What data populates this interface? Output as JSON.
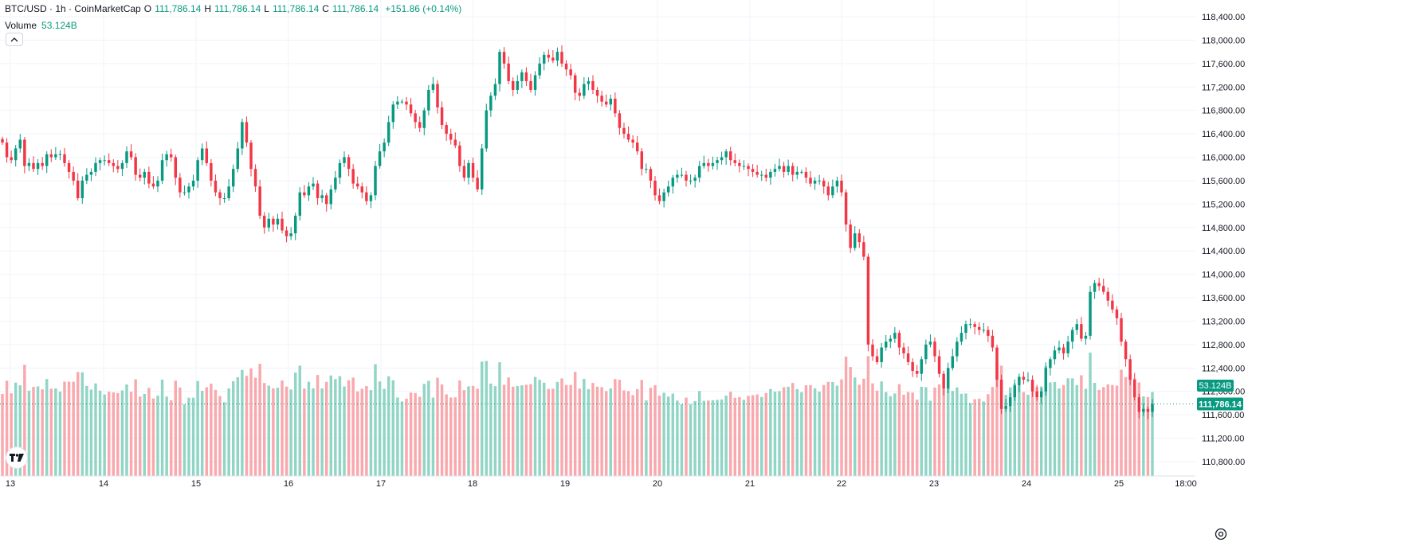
{
  "legend": {
    "symbol": "BTC/USD · 1h · CoinMarketCap",
    "open_label": "O",
    "open": "111,786.14",
    "high_label": "H",
    "high": "111,786.14",
    "low_label": "L",
    "low": "111,786.14",
    "close_label": "C",
    "close": "111,786.14",
    "change": "+151.86 (+0.14%)",
    "volume_label": "Volume",
    "volume_value": "53.124B"
  },
  "icons": {
    "collapse": "chevron-up-icon",
    "logo": "tradingview-logo",
    "settings": "gear-icon"
  },
  "colors": {
    "up": "#089981",
    "down": "#f23645",
    "vol_up": "#91d5c5",
    "vol_down": "#f9a8ad",
    "grid": "#f0f3fa",
    "text": "#131722"
  },
  "chart_data": {
    "type": "candlestick",
    "interval": "1h",
    "price_ticks": [
      "118,400.00",
      "118,000.00",
      "117,600.00",
      "117,200.00",
      "116,800.00",
      "116,400.00",
      "116,000.00",
      "115,600.00",
      "115,200.00",
      "114,800.00",
      "114,400.00",
      "114,000.00",
      "113,600.00",
      "113,200.00",
      "112,800.00",
      "112,400.00",
      "112,000.00",
      "111,600.00",
      "111,200.00",
      "110,800.00"
    ],
    "price_tick_values": [
      118400,
      118000,
      117600,
      117200,
      116800,
      116400,
      116000,
      115600,
      115200,
      114800,
      114400,
      114000,
      113600,
      113200,
      112800,
      112400,
      112000,
      111600,
      111200,
      110800
    ],
    "date_labels": [
      "13",
      "14",
      "15",
      "16",
      "17",
      "18",
      "19",
      "20",
      "21",
      "22",
      "23",
      "24",
      "25",
      "18:00"
    ],
    "current_price": "111,786.14",
    "current_price_value": 111786.14,
    "volume_label": "53.124B",
    "closes": [
      116250,
      116000,
      115950,
      116150,
      116300,
      115850,
      115900,
      115800,
      115900,
      115850,
      116050,
      116000,
      116050,
      116050,
      115900,
      115750,
      115600,
      115300,
      115600,
      115700,
      115750,
      115900,
      115950,
      115950,
      115900,
      115850,
      115800,
      115900,
      116100,
      116000,
      115700,
      115650,
      115750,
      115550,
      115500,
      115600,
      115950,
      116050,
      116000,
      115650,
      115400,
      115400,
      115500,
      115600,
      115950,
      116150,
      115900,
      115600,
      115400,
      115300,
      115300,
      115500,
      115800,
      116150,
      116600,
      116250,
      115800,
      115500,
      115000,
      114800,
      114950,
      114850,
      114950,
      114750,
      114650,
      114700,
      115000,
      115400,
      115350,
      115500,
      115550,
      115300,
      115350,
      115200,
      115450,
      115650,
      115900,
      116000,
      115800,
      115550,
      115500,
      115400,
      115250,
      115350,
      115850,
      116100,
      116250,
      116600,
      116900,
      116950,
      116950,
      116900,
      116750,
      116600,
      116500,
      116800,
      117150,
      117250,
      116850,
      116550,
      116400,
      116300,
      116200,
      115850,
      115650,
      115900,
      115650,
      115450,
      116150,
      116800,
      117050,
      117250,
      117800,
      117600,
      117300,
      117150,
      117300,
      117450,
      117300,
      117150,
      117400,
      117600,
      117750,
      117700,
      117650,
      117800,
      117600,
      117500,
      117400,
      117100,
      117050,
      117250,
      117300,
      117150,
      117050,
      116950,
      116900,
      117000,
      116750,
      116500,
      116400,
      116300,
      116250,
      116100,
      115800,
      115800,
      115600,
      115350,
      115250,
      115400,
      115500,
      115650,
      115700,
      115700,
      115600,
      115600,
      115650,
      115850,
      115900,
      115850,
      115900,
      115950,
      116000,
      116100,
      115950,
      115900,
      115850,
      115850,
      115800,
      115750,
      115700,
      115700,
      115650,
      115750,
      115800,
      115850,
      115750,
      115850,
      115700,
      115750,
      115750,
      115650,
      115550,
      115600,
      115600,
      115500,
      115350,
      115500,
      115600,
      115400,
      114850,
      114450,
      114700,
      114550,
      114300,
      112800,
      112600,
      112500,
      112750,
      112850,
      112900,
      113000,
      112750,
      112650,
      112500,
      112350,
      112300,
      112550,
      112800,
      112850,
      112600,
      112300,
      112050,
      112400,
      112600,
      112850,
      113000,
      113150,
      113150,
      113100,
      113050,
      113050,
      112950,
      112750,
      112200,
      111700,
      111750,
      111900,
      112100,
      112250,
      112200,
      112200,
      112000,
      111900,
      112000,
      112400,
      112550,
      112700,
      112750,
      112650,
      112850,
      113050,
      113150,
      112900,
      112950,
      113700,
      113850,
      113800,
      113700,
      113550,
      113400,
      113250,
      112850,
      112550,
      112200,
      111900,
      111650,
      111700,
      111650,
      111786.14
    ],
    "x_labels": [
      "13",
      "14",
      "15",
      "16",
      "17",
      "18",
      "19",
      "20",
      "21",
      "22",
      "23",
      "24",
      "25",
      "18:00"
    ]
  }
}
